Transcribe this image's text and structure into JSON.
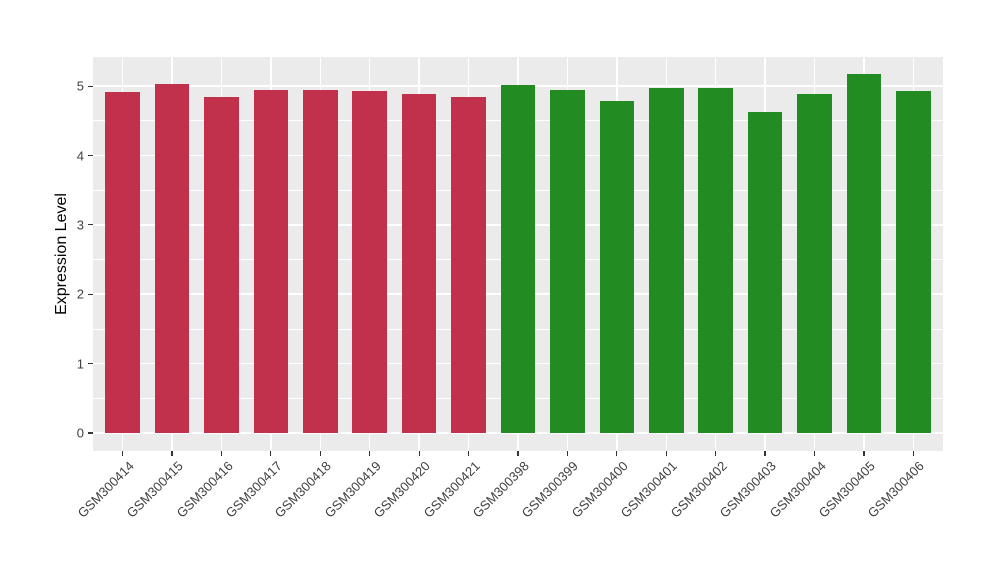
{
  "chart_data": {
    "type": "bar",
    "title": "",
    "xlabel": "",
    "ylabel": "Expression Level",
    "categories": [
      "GSM300414",
      "GSM300415",
      "GSM300416",
      "GSM300417",
      "GSM300418",
      "GSM300419",
      "GSM300420",
      "GSM300421",
      "GSM300398",
      "GSM300399",
      "GSM300400",
      "GSM300401",
      "GSM300402",
      "GSM300403",
      "GSM300404",
      "GSM300405",
      "GSM300406"
    ],
    "values": [
      4.92,
      5.03,
      4.84,
      4.95,
      4.95,
      4.93,
      4.88,
      4.84,
      5.01,
      4.94,
      4.79,
      4.97,
      4.98,
      4.63,
      4.88,
      5.17,
      4.93
    ],
    "groups": [
      "red",
      "red",
      "red",
      "red",
      "red",
      "red",
      "red",
      "red",
      "green",
      "green",
      "green",
      "green",
      "green",
      "green",
      "green",
      "green",
      "green"
    ],
    "group_colors": {
      "red": "#C2314C",
      "green": "#228B22"
    },
    "ylim": [
      -0.26,
      5.42
    ],
    "yticks": [
      0,
      1,
      2,
      3,
      4,
      5
    ],
    "minor_yticks": [
      0.5,
      1.5,
      2.5,
      3.5,
      4.5
    ],
    "grid": true,
    "legend_position": "none",
    "panel_background": "#EBEBEB",
    "grid_color": "#FFFFFF",
    "x_tick_rotation_deg": 45,
    "bar_width_fraction": 0.7
  },
  "style": {
    "axis_text_color": "#404040",
    "axis_title_color": "#000000",
    "tick_mark_color": "#333333",
    "figure_background": "#FFFFFF"
  }
}
